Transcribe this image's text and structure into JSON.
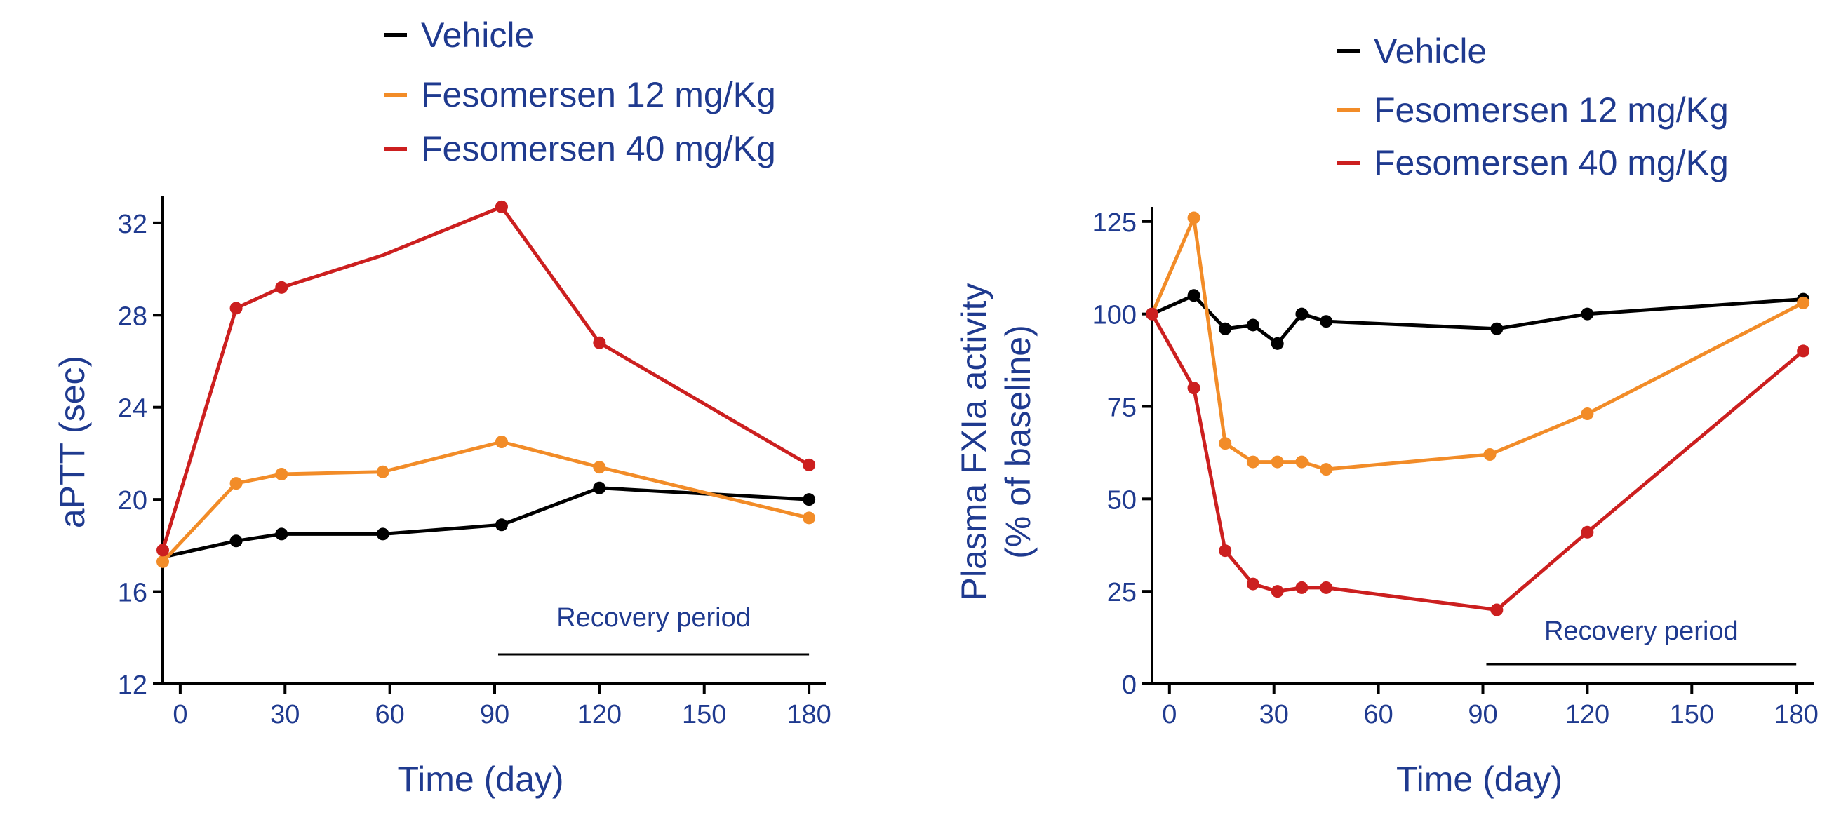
{
  "colors": {
    "text": "#1f3a8f",
    "axis": "#000000",
    "vehicle": "#000000",
    "fes12": "#f28c28",
    "fes40": "#cc1f1f"
  },
  "chart_data": [
    {
      "type": "line",
      "title": "",
      "xlabel": "Time (day)",
      "ylabel": "aPTT (sec)",
      "xlim": [
        -5,
        185
      ],
      "ylim": [
        12,
        33
      ],
      "xticks": [
        0,
        30,
        60,
        90,
        120,
        150,
        180
      ],
      "yticks": [
        12,
        16,
        20,
        24,
        28,
        32
      ],
      "legend": {
        "placement": "top-center"
      },
      "annotation": {
        "text": "Recovery period",
        "x_start": 91,
        "x_end": 180
      },
      "series": [
        {
          "name": "Vehicle",
          "color_key": "vehicle",
          "points": [
            [
              -5,
              17.5
            ],
            [
              16,
              18.2
            ],
            [
              29,
              18.5
            ],
            [
              58,
              18.5
            ],
            [
              92,
              18.9
            ],
            [
              120,
              20.5
            ],
            [
              180,
              20.0
            ]
          ],
          "markers": [
            false,
            true,
            true,
            true,
            true,
            true,
            true
          ]
        },
        {
          "name": "Fesomersen 12 mg/Kg",
          "color_key": "fes12",
          "points": [
            [
              -5,
              17.3
            ],
            [
              16,
              20.7
            ],
            [
              29,
              21.1
            ],
            [
              58,
              21.2
            ],
            [
              92,
              22.5
            ],
            [
              120,
              21.4
            ],
            [
              180,
              19.2
            ]
          ],
          "markers": [
            true,
            true,
            true,
            true,
            true,
            true,
            true
          ]
        },
        {
          "name": "Fesomersen 40 mg/Kg",
          "color_key": "fes40",
          "points": [
            [
              -5,
              17.8
            ],
            [
              16,
              28.3
            ],
            [
              29,
              29.2
            ],
            [
              58,
              30.6
            ],
            [
              92,
              32.7
            ],
            [
              120,
              26.8
            ],
            [
              180,
              21.5
            ]
          ],
          "markers": [
            true,
            true,
            true,
            false,
            true,
            true,
            true
          ]
        }
      ]
    },
    {
      "type": "line",
      "title": "",
      "xlabel": "Time (day)",
      "ylabel": "Plasma FXIa activity (% of baseline)",
      "ylabel_lines": [
        "Plasma FXIa activity",
        "(% of baseline)"
      ],
      "xlim": [
        -5,
        185
      ],
      "ylim": [
        0,
        128
      ],
      "xticks": [
        0,
        30,
        60,
        90,
        120,
        150,
        180
      ],
      "yticks": [
        0,
        25,
        50,
        75,
        100,
        125
      ],
      "legend": {
        "placement": "top-center"
      },
      "annotation": {
        "text": "Recovery period",
        "x_start": 91,
        "x_end": 180
      },
      "series": [
        {
          "name": "Vehicle",
          "color_key": "vehicle",
          "points": [
            [
              -5,
              100
            ],
            [
              7,
              105
            ],
            [
              16,
              96
            ],
            [
              24,
              97
            ],
            [
              31,
              92
            ],
            [
              38,
              100
            ],
            [
              45,
              98
            ],
            [
              94,
              96
            ],
            [
              120,
              100
            ],
            [
              182,
              104
            ]
          ],
          "markers": [
            true,
            true,
            true,
            true,
            true,
            true,
            true,
            true,
            true,
            true
          ]
        },
        {
          "name": "Fesomersen 12 mg/Kg",
          "color_key": "fes12",
          "points": [
            [
              -5,
              100
            ],
            [
              7,
              126
            ],
            [
              16,
              65
            ],
            [
              24,
              60
            ],
            [
              31,
              60
            ],
            [
              38,
              60
            ],
            [
              45,
              58
            ],
            [
              92,
              62
            ],
            [
              120,
              73
            ],
            [
              182,
              103
            ]
          ],
          "markers": [
            false,
            true,
            true,
            true,
            true,
            true,
            true,
            true,
            true,
            true
          ]
        },
        {
          "name": "Fesomersen 40 mg/Kg",
          "color_key": "fes40",
          "points": [
            [
              -5,
              100
            ],
            [
              7,
              80
            ],
            [
              16,
              36
            ],
            [
              24,
              27
            ],
            [
              31,
              25
            ],
            [
              38,
              26
            ],
            [
              45,
              26
            ],
            [
              94,
              20
            ],
            [
              120,
              41
            ],
            [
              182,
              90
            ]
          ],
          "markers": [
            true,
            true,
            true,
            true,
            true,
            true,
            true,
            true,
            true,
            true
          ]
        }
      ]
    }
  ]
}
